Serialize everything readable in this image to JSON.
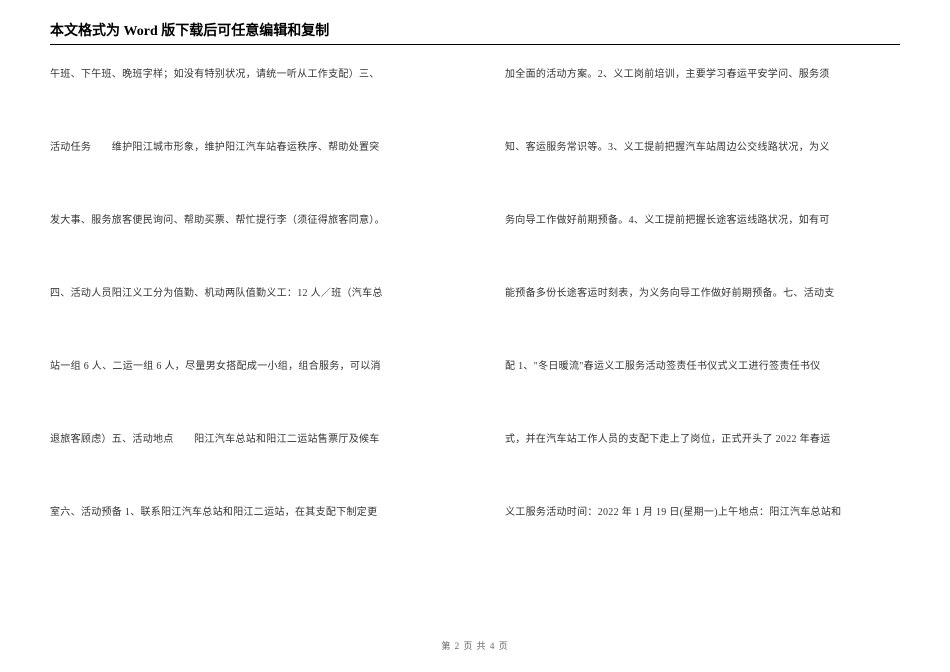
{
  "header": "本文格式为 Word 版下载后可任意编辑和复制",
  "leftColumn": [
    "午班、下午班、晚班字样；如没有特别状况，请统一听从工作支配）三、",
    "活动任务　　维护阳江城市形象，维护阳江汽车站春运秩序、帮助处置突",
    "发大事、服务旅客便民询问、帮助买票、帮忙提行李（须征得旅客同意）。",
    "四、活动人员阳江义工分为值勤、机动两队值勤义工：12 人／班（汽车总",
    "站一组 6 人、二运一组 6 人，尽量男女搭配成一小组，组合服务，可以消",
    "退旅客顾虑）五、活动地点　　阳江汽车总站和阳江二运站售票厅及候车",
    "室六、活动预备 1、联系阳江汽车总站和阳江二运站，在其支配下制定更"
  ],
  "rightColumn": [
    "加全面的活动方案。2、义工岗前培训，主要学习春运平安学问、服务须",
    "知、客运服务常识等。3、义工提前把握汽车站周边公交线路状况，为义",
    "务向导工作做好前期预备。4、义工提前把握长途客运线路状况，如有可",
    "能预备多份长途客运时刻表，为义务向导工作做好前期预备。七、活动支",
    "配 1、\"冬日暖流\"春运义工服务活动签责任书仪式义工进行签责任书仪",
    "式，并在汽车站工作人员的支配下走上了岗位，正式开头了 2022 年春运",
    "义工服务活动时间：2022 年 1 月 19 日(星期一)上午地点：阳江汽车总站和"
  ],
  "footer": "第 2 页 共 4 页"
}
